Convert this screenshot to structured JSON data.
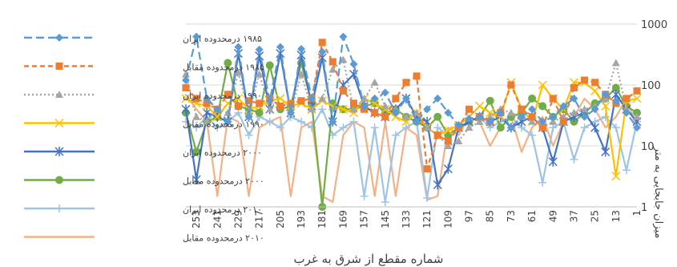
{
  "chart_data": {
    "type": "line",
    "xlabel": "شماره مقطع از شرق به غرب",
    "ylabel": "میزان جابجایی به متر",
    "y_scale": "log",
    "ylim": [
      1,
      1000
    ],
    "y_ticks": [
      "1",
      "10",
      "100",
      "1000"
    ],
    "x_ticks": [
      "253",
      "241",
      "229",
      "217",
      "205",
      "193",
      "181",
      "169",
      "157",
      "145",
      "133",
      "121",
      "109",
      "97",
      "85",
      "73",
      "61",
      "49",
      "37",
      "25",
      "13",
      "1"
    ],
    "x_min": 1,
    "x_max": 259,
    "x_reversed": true,
    "grid": "horizontal",
    "legend_position": "left",
    "series": [
      {
        "name": "۱۹۸۵ درمحدوده ایران",
        "color": "#5b9bd5",
        "dash": "10,5",
        "marker": "diamond",
        "x": [
          259,
          253,
          247,
          241,
          235,
          229,
          223,
          217,
          211,
          205,
          199,
          193,
          187,
          181,
          175,
          169,
          163,
          157,
          151,
          145,
          139,
          133,
          127,
          121,
          115,
          109,
          103,
          97,
          91,
          85,
          79,
          73,
          67,
          61,
          55,
          49,
          43,
          37,
          31,
          25,
          19,
          13,
          7,
          1
        ],
        "y": [
          120,
          620,
          60,
          40,
          25,
          420,
          30,
          380,
          55,
          420,
          35,
          390,
          60,
          350,
          25,
          620,
          220,
          45,
          60,
          75,
          35,
          60,
          25,
          40,
          60,
          35,
          22,
          28,
          30,
          25,
          35,
          20,
          30,
          40,
          25,
          30,
          45,
          60,
          30,
          40,
          70,
          55,
          35,
          20
        ]
      },
      {
        "name": "۱۹۸۵ درمحدوده مقابل",
        "color": "#ed7d31",
        "dash": "6,4",
        "marker": "square",
        "x": [
          259,
          253,
          247,
          241,
          235,
          229,
          223,
          217,
          211,
          205,
          199,
          193,
          187,
          181,
          175,
          169,
          163,
          157,
          151,
          145,
          139,
          133,
          127,
          121,
          115,
          109,
          103,
          97,
          91,
          85,
          79,
          73,
          67,
          61,
          55,
          49,
          43,
          37,
          31,
          25,
          19,
          13,
          7,
          1
        ],
        "y": [
          90,
          60,
          50,
          40,
          70,
          45,
          55,
          50,
          60,
          45,
          50,
          55,
          60,
          500,
          240,
          80,
          50,
          40,
          35,
          30,
          60,
          110,
          140,
          4.2,
          15,
          12,
          20,
          40,
          30,
          25,
          35,
          100,
          40,
          30,
          20,
          60,
          25,
          90,
          120,
          110,
          70,
          50,
          60,
          80
        ]
      },
      {
        "name": "۱۹۹۰ درمحدوده ایران",
        "color": "#a5a5a5",
        "dash": "2,3",
        "marker": "triangle",
        "x": [
          259,
          253,
          247,
          241,
          235,
          229,
          223,
          217,
          211,
          205,
          199,
          193,
          187,
          181,
          175,
          169,
          163,
          157,
          151,
          145,
          139,
          133,
          127,
          121,
          115,
          109,
          103,
          97,
          91,
          85,
          79,
          73,
          67,
          61,
          55,
          49,
          43,
          37,
          31,
          25,
          19,
          13,
          7,
          1
        ],
        "y": [
          150,
          30,
          25,
          40,
          35,
          160,
          35,
          150,
          40,
          45,
          35,
          150,
          40,
          60,
          180,
          260,
          40,
          60,
          110,
          45,
          40,
          30,
          35,
          20,
          15,
          10,
          12,
          20,
          25,
          30,
          40,
          35,
          30,
          25,
          20,
          25,
          30,
          35,
          40,
          45,
          60,
          230,
          40,
          30
        ]
      },
      {
        "name": "۱۹۹۰ درمحدوده مقابل",
        "color": "#ffc000",
        "dash": "",
        "marker": "x",
        "x": [
          259,
          253,
          247,
          241,
          235,
          229,
          223,
          217,
          211,
          205,
          199,
          193,
          187,
          181,
          175,
          169,
          163,
          157,
          151,
          145,
          139,
          133,
          127,
          121,
          115,
          109,
          103,
          97,
          91,
          85,
          79,
          73,
          67,
          61,
          55,
          49,
          43,
          37,
          31,
          25,
          19,
          13,
          7,
          1
        ],
        "y": [
          60,
          50,
          45,
          30,
          50,
          60,
          40,
          45,
          55,
          60,
          45,
          50,
          40,
          55,
          45,
          40,
          35,
          60,
          50,
          40,
          30,
          25,
          35,
          20,
          15,
          18,
          22,
          30,
          45,
          35,
          30,
          110,
          40,
          25,
          100,
          60,
          40,
          110,
          110,
          80,
          45,
          3.2,
          55,
          60
        ]
      },
      {
        "name": "۲۰۰۰ درمحدوده ایران",
        "color": "#4472c4",
        "dash": "",
        "marker": "star",
        "x": [
          259,
          253,
          247,
          241,
          235,
          229,
          223,
          217,
          211,
          205,
          199,
          193,
          187,
          181,
          175,
          169,
          163,
          157,
          151,
          145,
          139,
          133,
          127,
          121,
          115,
          109,
          103,
          97,
          91,
          85,
          79,
          73,
          67,
          61,
          55,
          49,
          43,
          37,
          31,
          25,
          19,
          13,
          7,
          1
        ],
        "y": [
          40,
          2.8,
          35,
          30,
          25,
          330,
          30,
          300,
          40,
          330,
          35,
          310,
          45,
          280,
          25,
          100,
          150,
          45,
          35,
          30,
          40,
          60,
          30,
          25,
          2.3,
          4.2,
          20,
          25,
          30,
          25,
          30,
          20,
          25,
          30,
          20,
          5.5,
          25,
          30,
          35,
          20,
          8,
          70,
          40,
          25
        ]
      },
      {
        "name": "۲۰۰۰ درمحدوده مقابل",
        "color": "#70ad47",
        "dash": "",
        "marker": "circle",
        "x": [
          259,
          253,
          247,
          241,
          235,
          229,
          223,
          217,
          211,
          205,
          199,
          193,
          187,
          181,
          175,
          169,
          163,
          157,
          151,
          145,
          139,
          133,
          127,
          121,
          115,
          109,
          103,
          97,
          91,
          85,
          79,
          73,
          67,
          61,
          55,
          49,
          43,
          37,
          31,
          25,
          19,
          13,
          7,
          1
        ],
        "y": [
          35,
          8,
          25,
          30,
          230,
          45,
          40,
          35,
          210,
          40,
          45,
          230,
          50,
          1,
          50,
          40,
          40,
          45,
          50,
          35,
          40,
          30,
          25,
          20,
          30,
          15,
          20,
          25,
          30,
          55,
          20,
          30,
          35,
          60,
          45,
          30,
          40,
          25,
          35,
          50,
          60,
          90,
          45,
          35
        ]
      },
      {
        "name": "۲۰۱۰ درمحدوده ایران",
        "color": "#9dc3e6",
        "dash": "",
        "marker": "plus",
        "x": [
          259,
          253,
          247,
          241,
          235,
          229,
          223,
          217,
          211,
          205,
          199,
          193,
          187,
          181,
          175,
          169,
          163,
          157,
          151,
          145,
          139,
          133,
          127,
          121,
          115,
          109,
          103,
          97,
          91,
          85,
          79,
          73,
          67,
          61,
          55,
          49,
          43,
          37,
          31,
          25,
          19,
          13,
          7,
          1
        ],
        "y": [
          25,
          20,
          30,
          20,
          25,
          35,
          15,
          30,
          25,
          20,
          30,
          25,
          20,
          40,
          15,
          20,
          25,
          1.5,
          20,
          1.2,
          15,
          20,
          25,
          1.4,
          20,
          15,
          20,
          25,
          30,
          20,
          25,
          30,
          20,
          15,
          2.5,
          20,
          25,
          6,
          20,
          25,
          30,
          20,
          4,
          25
        ]
      },
      {
        "name": "۲۰۱۰ درمحدوده مقابل",
        "color": "#f4b183",
        "dash": "",
        "marker": "none",
        "x": [
          259,
          253,
          247,
          241,
          235,
          229,
          223,
          217,
          211,
          205,
          199,
          193,
          187,
          181,
          175,
          169,
          163,
          157,
          151,
          145,
          139,
          133,
          127,
          121,
          115,
          109,
          103,
          97,
          91,
          85,
          79,
          73,
          67,
          61,
          55,
          49,
          43,
          37,
          31,
          25,
          19,
          13,
          7,
          1
        ],
        "y": [
          70,
          40,
          25,
          1.5,
          30,
          25,
          1.5,
          20,
          25,
          30,
          1.5,
          20,
          25,
          1.5,
          1.2,
          15,
          25,
          20,
          1.5,
          25,
          1.5,
          20,
          15,
          1.3,
          1.5,
          20,
          15,
          30,
          25,
          10,
          20,
          30,
          8,
          20,
          30,
          10,
          25,
          30,
          60,
          40,
          20,
          30,
          60,
          20
        ]
      }
    ]
  }
}
